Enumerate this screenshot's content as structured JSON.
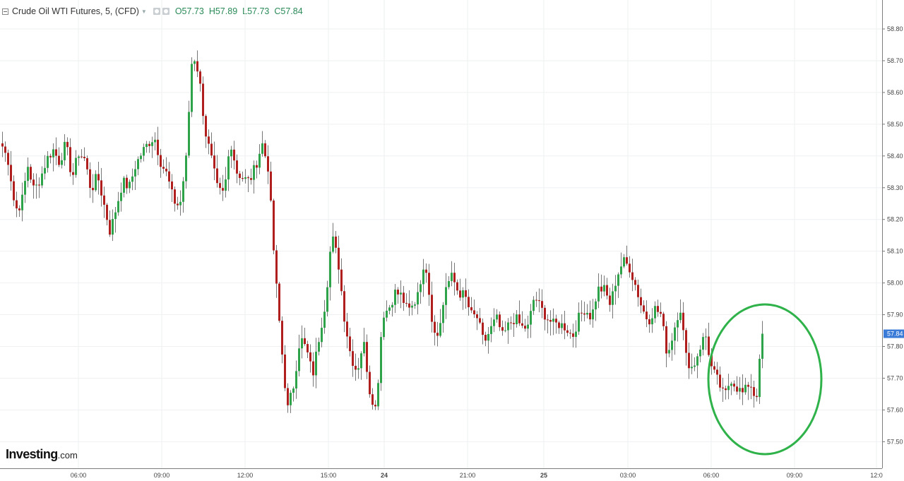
{
  "header": {
    "title": "Crude Oil WTI Futures, 5, (CFD)",
    "open_label": "O",
    "open": "57.73",
    "high_label": "H",
    "high": "57.89",
    "low_label": "L",
    "low": "57.73",
    "close_label": "C",
    "close": "57.84"
  },
  "logo": {
    "brand": "Investing",
    "suffix": ".com"
  },
  "colors": {
    "up": "#2ea34a",
    "down": "#b01e1e",
    "grid": "#eef0f2",
    "highlight_circle": "#2fb24a",
    "price_tag": "#3b7bd8"
  },
  "chart_data": {
    "type": "candlestick",
    "title": "Crude Oil WTI Futures, 5, (CFD)",
    "xlabel": "",
    "ylabel": "",
    "ylim": [
      57.45,
      58.85
    ],
    "y_ticks": [
      "58.80",
      "58.70",
      "58.60",
      "58.50",
      "58.40",
      "58.30",
      "58.20",
      "58.10",
      "58.00",
      "57.90",
      "57.80",
      "57.70",
      "57.60",
      "57.50"
    ],
    "x_ticks": [
      "06:00",
      "09:00",
      "12:00",
      "15:00",
      "24",
      "21:00",
      "25",
      "03:00",
      "06:00",
      "09:00",
      "12:0"
    ],
    "x_ticks_bold": [
      "24",
      "25"
    ],
    "last_price": "57.84",
    "grid": true,
    "annotation": "green ellipse highlighting the latest price action",
    "anchors": [
      58.43,
      58.38,
      58.23,
      58.25,
      58.37,
      58.29,
      58.33,
      58.39,
      58.42,
      58.38,
      58.44,
      58.33,
      58.41,
      58.39,
      58.29,
      58.34,
      58.25,
      58.16,
      58.24,
      58.32,
      58.3,
      58.37,
      58.41,
      58.44,
      58.46,
      58.38,
      58.34,
      58.26,
      58.24,
      58.39,
      58.73,
      58.66,
      58.48,
      58.39,
      58.29,
      58.28,
      58.45,
      58.35,
      58.33,
      58.32,
      58.37,
      58.44,
      58.36,
      58.05,
      57.81,
      57.6,
      57.68,
      57.83,
      57.79,
      57.71,
      57.83,
      57.94,
      58.15,
      58.07,
      57.89,
      57.77,
      57.72,
      57.82,
      57.66,
      57.6,
      57.9,
      57.92,
      57.97,
      57.96,
      57.91,
      57.93,
      58.01,
      58.05,
      57.85,
      57.85,
      57.99,
      58.02,
      57.97,
      57.96,
      57.9,
      57.89,
      57.81,
      57.85,
      57.89,
      57.83,
      57.87,
      57.89,
      57.86,
      57.86,
      57.96,
      57.92,
      57.89,
      57.87,
      57.87,
      57.86,
      57.83,
      57.89,
      57.92,
      57.89,
      57.98,
      57.98,
      57.93,
      58.02,
      58.07,
      58.05,
      57.99,
      57.92,
      57.88,
      57.92,
      57.9,
      57.77,
      57.85,
      57.93,
      57.76,
      57.73,
      57.79,
      57.84,
      57.73,
      57.69,
      57.64,
      57.7,
      57.67,
      57.65,
      57.69,
      57.63,
      57.84
    ]
  }
}
